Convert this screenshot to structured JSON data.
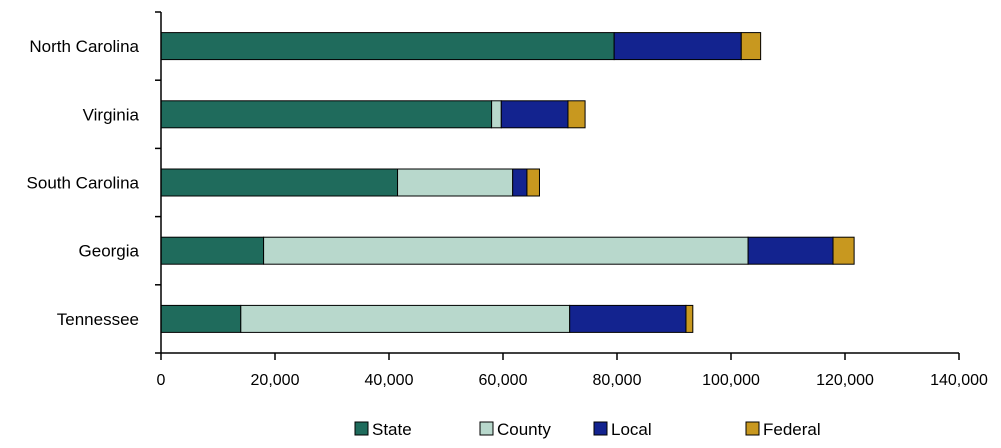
{
  "chart_data": {
    "type": "bar",
    "orientation": "horizontal",
    "stacked": true,
    "categories": [
      "North Carolina",
      "Virginia",
      "South Carolina",
      "Georgia",
      "Tennessee"
    ],
    "series": [
      {
        "name": "State",
        "color": "#1f6b5c",
        "values": [
          79500,
          58000,
          41500,
          18000,
          14000
        ]
      },
      {
        "name": "County",
        "color": "#b8d8cc",
        "values": [
          0,
          1700,
          20200,
          85000,
          57700
        ]
      },
      {
        "name": "Local",
        "color": "#13238f",
        "values": [
          22300,
          11700,
          2500,
          14900,
          20400
        ]
      },
      {
        "name": "Federal",
        "color": "#c8981f",
        "values": [
          3400,
          3000,
          2200,
          3700,
          1200
        ]
      }
    ],
    "xlim": [
      0,
      140000
    ],
    "x_ticks": [
      "0",
      "20,000",
      "40,000",
      "60,000",
      "80,000",
      "100,000",
      "120,000",
      "140,000"
    ],
    "x_tick_values": [
      0,
      20000,
      40000,
      60000,
      80000,
      100000,
      120000,
      140000
    ],
    "grid": false,
    "legend_position": "bottom"
  }
}
